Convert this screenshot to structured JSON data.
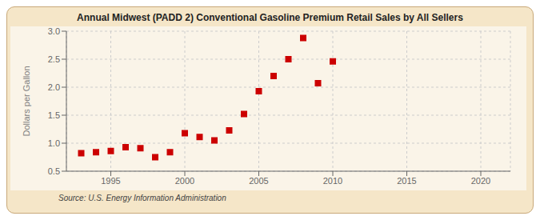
{
  "chart_data": {
    "type": "scatter",
    "title": "Annual Midwest (PADD 2) Conventional Gasoline Premium Retail Sales by All Sellers",
    "ylabel": "Dollars per Gallon",
    "annotation": "Source: U.S. Energy Information Administration",
    "x": [
      1993,
      1994,
      1995,
      1996,
      1997,
      1998,
      1999,
      2000,
      2001,
      2002,
      2003,
      2004,
      2005,
      2006,
      2007,
      2008,
      2009,
      2010
    ],
    "values": [
      0.82,
      0.84,
      0.86,
      0.93,
      0.91,
      0.75,
      0.84,
      1.18,
      1.11,
      1.05,
      1.23,
      1.52,
      1.93,
      2.2,
      2.5,
      2.88,
      2.07,
      2.46
    ],
    "xlim": [
      1992,
      2022
    ],
    "ylim": [
      0.5,
      3.0
    ],
    "xticks": [
      1995,
      2000,
      2005,
      2010,
      2015,
      2020
    ],
    "yticks": [
      0.5,
      {
        "value": 1.0,
        "label": "1.0"
      },
      1.5,
      {
        "value": 2.0,
        "label": "2.0"
      },
      2.5,
      {
        "value": 3.0,
        "label": "3.0"
      }
    ],
    "color": "#cc0000",
    "marker": "square",
    "grid": true
  }
}
